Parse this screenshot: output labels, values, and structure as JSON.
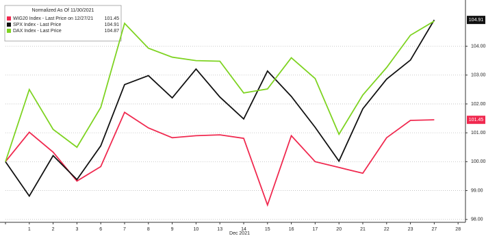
{
  "chart_data": {
    "type": "line",
    "legend_title": "Normalized As Of 11/30/2021",
    "x_label": "Dec 2021",
    "categories": [
      null,
      "1",
      "2",
      "3",
      "6",
      "7",
      "8",
      "9",
      "10",
      "13",
      "14",
      "15",
      "16",
      "17",
      "20",
      "21",
      "22",
      "23",
      "27",
      "28"
    ],
    "series": [
      {
        "name": "WIG20 Index - Last Price on 12/27/21",
        "color": "#f0294f",
        "values": [
          100.0,
          101.02,
          100.33,
          99.33,
          99.83,
          101.71,
          101.17,
          100.83,
          100.9,
          100.93,
          100.81,
          98.5,
          100.9,
          100.0,
          99.8,
          99.6,
          100.83,
          101.43,
          101.45,
          null
        ]
      },
      {
        "name": "SPX Index - Last Price",
        "color": "#111111",
        "values": [
          100.0,
          98.81,
          100.21,
          99.38,
          100.55,
          102.67,
          102.98,
          102.21,
          103.21,
          102.24,
          101.48,
          103.14,
          102.26,
          101.19,
          100.02,
          101.83,
          102.86,
          103.52,
          104.91,
          null
        ]
      },
      {
        "name": "DAX Index - Last Price",
        "color": "#7ed321",
        "values": [
          100.0,
          102.5,
          101.12,
          100.5,
          101.88,
          104.79,
          103.93,
          103.62,
          103.5,
          103.48,
          102.38,
          102.52,
          103.6,
          102.88,
          100.95,
          102.31,
          103.26,
          104.38,
          104.87,
          null
        ]
      }
    ],
    "ylim": [
      97.9,
      105.6
    ],
    "yticks": [
      {
        "value": 98,
        "label": "98.00"
      },
      {
        "value": 99,
        "label": "99.00"
      },
      {
        "value": 100,
        "label": "100.00"
      },
      {
        "value": 101,
        "label": "101.00"
      },
      {
        "value": 102,
        "label": "102.00"
      },
      {
        "value": 103,
        "label": "103.00"
      },
      {
        "value": 104,
        "label": "104.00"
      }
    ],
    "grid": true
  }
}
